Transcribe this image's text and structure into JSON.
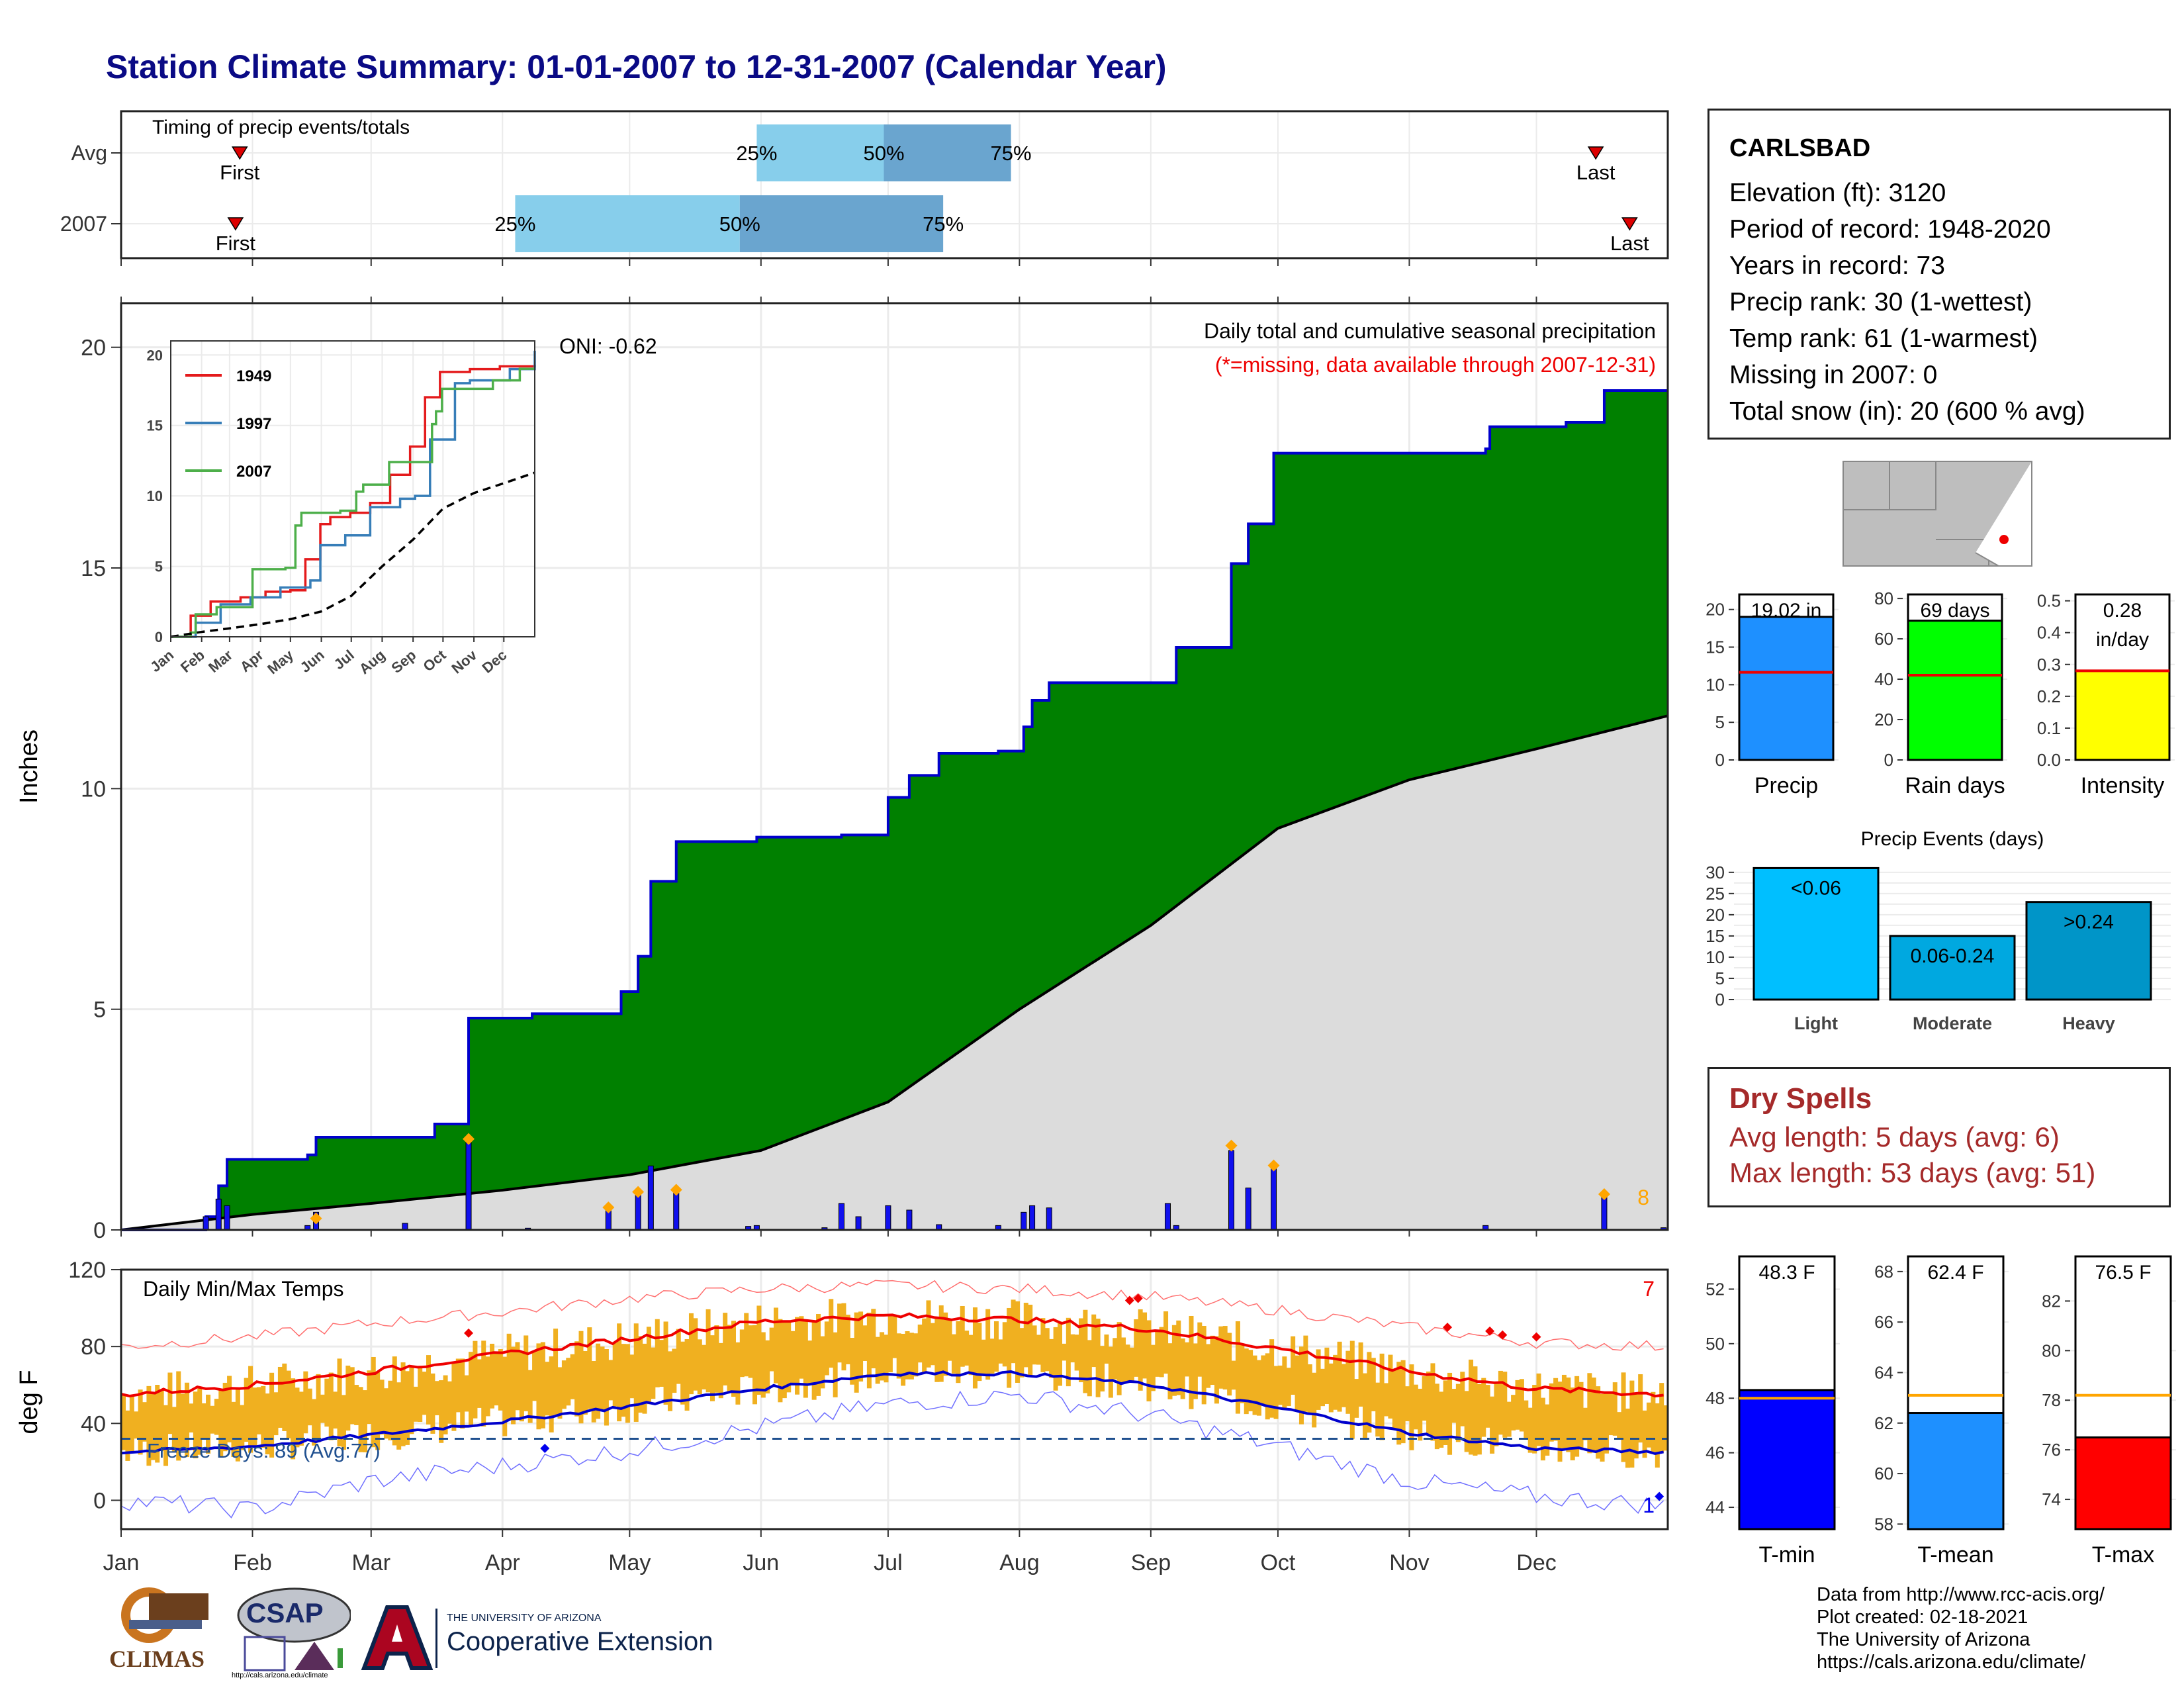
{
  "title": "Station Climate Summary: 01-01-2007 to 12-31-2007 (Calendar Year)",
  "timing": {
    "label": "Timing of precip events/totals",
    "rows": [
      {
        "name": "Avg",
        "first_day": 28,
        "q25_day": 150,
        "q50_day": 180,
        "q75_day": 210,
        "last_day": 348
      },
      {
        "name": "2007",
        "first_day": 27,
        "q25_day": 93,
        "q50_day": 146,
        "q75_day": 194,
        "last_day": 356
      }
    ],
    "first_label": "First",
    "last_label": "Last",
    "q25_label": "25%",
    "q50_label": "50%",
    "q75_label": "75%"
  },
  "main": {
    "ylabel": "Inches",
    "caption1": "Daily total and cumulative seasonal precipitation",
    "caption2": "(*=missing, data available through 2007-12-31)",
    "oni": "ONI: -0.62",
    "corner_count": "8",
    "colors": {
      "cumulative": "#008000",
      "average": "#dcdcdc",
      "daily_bar": "#1010ee",
      "outline": "#0000cc"
    }
  },
  "chart_data": [
    {
      "type": "area",
      "name": "cumulative-precip",
      "x_ticks": [
        "Jan",
        "Feb",
        "Mar",
        "Apr",
        "May",
        "Jun",
        "Jul",
        "Aug",
        "Sep",
        "Oct",
        "Nov",
        "Dec"
      ],
      "yticks": [
        "0",
        "5",
        "10",
        "15",
        "20"
      ],
      "ylim": [
        0,
        21
      ],
      "cumulative_steps": [
        [
          0,
          0
        ],
        [
          20,
          0.3
        ],
        [
          23,
          1.0
        ],
        [
          25,
          1.6
        ],
        [
          44,
          1.7
        ],
        [
          46,
          2.1
        ],
        [
          74,
          2.4
        ],
        [
          80,
          2.4
        ],
        [
          82,
          4.8
        ],
        [
          96,
          4.8
        ],
        [
          97,
          4.9
        ],
        [
          115,
          4.9
        ],
        [
          118,
          5.4
        ],
        [
          122,
          6.2
        ],
        [
          125,
          7.9
        ],
        [
          131,
          8.8
        ],
        [
          148,
          8.8
        ],
        [
          150,
          8.9
        ],
        [
          166,
          8.9
        ],
        [
          170,
          8.95
        ],
        [
          181,
          9.8
        ],
        [
          186,
          10.3
        ],
        [
          193,
          10.8
        ],
        [
          201,
          10.8
        ],
        [
          207,
          10.85
        ],
        [
          213,
          11.4
        ],
        [
          215,
          12.0
        ],
        [
          219,
          12.4
        ],
        [
          247,
          12.4
        ],
        [
          249,
          13.2
        ],
        [
          262,
          15.1
        ],
        [
          264,
          15.1
        ],
        [
          266,
          16.0
        ],
        [
          272,
          17.6
        ],
        [
          317,
          17.6
        ],
        [
          322,
          17.7
        ],
        [
          323,
          18.2
        ],
        [
          341,
          18.3
        ],
        [
          347,
          18.3
        ],
        [
          350,
          19.02
        ],
        [
          365,
          19.02
        ]
      ],
      "avg_points": [
        [
          0,
          0
        ],
        [
          31,
          0.35
        ],
        [
          59,
          0.6
        ],
        [
          90,
          0.9
        ],
        [
          120,
          1.25
        ],
        [
          151,
          1.8
        ],
        [
          181,
          2.9
        ],
        [
          212,
          5.0
        ],
        [
          243,
          6.9
        ],
        [
          273,
          9.1
        ],
        [
          304,
          10.2
        ],
        [
          334,
          10.9
        ],
        [
          365,
          11.65
        ]
      ],
      "daily_bars": [
        [
          20,
          0.3
        ],
        [
          23,
          0.7
        ],
        [
          25,
          0.55
        ],
        [
          44,
          0.1
        ],
        [
          46,
          0.4
        ],
        [
          67,
          0.15
        ],
        [
          82,
          2.0
        ],
        [
          96,
          0.04
        ],
        [
          115,
          0.45
        ],
        [
          122,
          0.8
        ],
        [
          125,
          1.45
        ],
        [
          131,
          0.85
        ],
        [
          148,
          0.08
        ],
        [
          150,
          0.1
        ],
        [
          166,
          0.05
        ],
        [
          170,
          0.6
        ],
        [
          174,
          0.3
        ],
        [
          181,
          0.55
        ],
        [
          186,
          0.45
        ],
        [
          193,
          0.12
        ],
        [
          207,
          0.1
        ],
        [
          213,
          0.4
        ],
        [
          215,
          0.55
        ],
        [
          219,
          0.5
        ],
        [
          247,
          0.6
        ],
        [
          249,
          0.1
        ],
        [
          262,
          1.8
        ],
        [
          266,
          0.95
        ],
        [
          272,
          1.4
        ],
        [
          322,
          0.1
        ],
        [
          350,
          0.75
        ],
        [
          364,
          0.05
        ]
      ],
      "missing_markers": [
        [
          46,
          0.2
        ],
        [
          82,
          2.0
        ],
        [
          115,
          0.45
        ],
        [
          122,
          0.8
        ],
        [
          131,
          0.85
        ],
        [
          262,
          1.85
        ],
        [
          272,
          1.4
        ],
        [
          350,
          0.75
        ]
      ]
    },
    {
      "type": "line",
      "name": "inset-cumulative",
      "x_ticks": [
        "Jan",
        "Feb",
        "Mar",
        "Apr",
        "May",
        "Jun",
        "Jul",
        "Aug",
        "Sep",
        "Oct",
        "Nov",
        "Dec"
      ],
      "yticks": [
        "0",
        "5",
        "10",
        "15",
        "20"
      ],
      "ylim": [
        0,
        21
      ],
      "series": [
        {
          "name": "1949",
          "color": "#e41a1c",
          "points": [
            [
              0,
              0
            ],
            [
              20,
              1.5
            ],
            [
              40,
              2.5
            ],
            [
              70,
              2.8
            ],
            [
              95,
              3.2
            ],
            [
              120,
              3.3
            ],
            [
              135,
              5.5
            ],
            [
              150,
              8.0
            ],
            [
              160,
              8.5
            ],
            [
              180,
              8.8
            ],
            [
              200,
              9.5
            ],
            [
              220,
              11.5
            ],
            [
              240,
              13.5
            ],
            [
              255,
              17.0
            ],
            [
              270,
              18.8
            ],
            [
              300,
              19.0
            ],
            [
              330,
              19.2
            ],
            [
              365,
              19.3
            ]
          ]
        },
        {
          "name": "1997",
          "color": "#377eb8",
          "points": [
            [
              0,
              0
            ],
            [
              25,
              1.0
            ],
            [
              50,
              2.3
            ],
            [
              80,
              2.8
            ],
            [
              110,
              3.5
            ],
            [
              140,
              4.0
            ],
            [
              150,
              6.5
            ],
            [
              175,
              7.2
            ],
            [
              200,
              9.2
            ],
            [
              230,
              9.8
            ],
            [
              245,
              10.0
            ],
            [
              260,
              14.0
            ],
            [
              285,
              18.0
            ],
            [
              300,
              18.2
            ],
            [
              340,
              19.0
            ],
            [
              365,
              20.3
            ]
          ]
        },
        {
          "name": "2007",
          "color": "#4daf4a",
          "points": [
            [
              0,
              0
            ],
            [
              20,
              0.3
            ],
            [
              25,
              1.6
            ],
            [
              46,
              2.1
            ],
            [
              82,
              4.8
            ],
            [
              115,
              4.9
            ],
            [
              125,
              7.9
            ],
            [
              131,
              8.8
            ],
            [
              170,
              8.95
            ],
            [
              186,
              10.3
            ],
            [
              193,
              10.8
            ],
            [
              219,
              12.4
            ],
            [
              247,
              12.4
            ],
            [
              262,
              15.1
            ],
            [
              266,
              16.0
            ],
            [
              272,
              17.6
            ],
            [
              317,
              17.6
            ],
            [
              323,
              18.2
            ],
            [
              350,
              19.02
            ],
            [
              365,
              19.02
            ]
          ]
        },
        {
          "name": "avg",
          "color": "#000000",
          "points": [
            [
              0,
              0
            ],
            [
              31,
              0.35
            ],
            [
              59,
              0.6
            ],
            [
              90,
              0.9
            ],
            [
              120,
              1.25
            ],
            [
              151,
              1.8
            ],
            [
              181,
              2.9
            ],
            [
              212,
              5.0
            ],
            [
              243,
              6.9
            ],
            [
              273,
              9.1
            ],
            [
              304,
              10.2
            ],
            [
              334,
              10.9
            ],
            [
              365,
              11.65
            ]
          ]
        }
      ]
    },
    {
      "type": "line",
      "name": "daily-temps",
      "title": "Daily Min/Max Temps",
      "ylabel": "deg F",
      "yticks": [
        "0",
        "40",
        "80",
        "120"
      ],
      "ylim": [
        -15,
        120
      ],
      "x_ticks": [
        "Jan",
        "Feb",
        "Mar",
        "Apr",
        "May",
        "Jun",
        "Jul",
        "Aug",
        "Sep",
        "Oct",
        "Nov",
        "Dec"
      ],
      "normal_max": [
        [
          0,
          55
        ],
        [
          31,
          60
        ],
        [
          59,
          67
        ],
        [
          90,
          76
        ],
        [
          120,
          84
        ],
        [
          151,
          93
        ],
        [
          181,
          96
        ],
        [
          212,
          94
        ],
        [
          243,
          89
        ],
        [
          273,
          79
        ],
        [
          304,
          67
        ],
        [
          334,
          58
        ],
        [
          365,
          55
        ]
      ],
      "normal_min": [
        [
          0,
          25
        ],
        [
          31,
          28
        ],
        [
          59,
          34
        ],
        [
          90,
          41
        ],
        [
          120,
          49
        ],
        [
          151,
          58
        ],
        [
          181,
          66
        ],
        [
          212,
          66
        ],
        [
          243,
          60
        ],
        [
          273,
          48
        ],
        [
          304,
          35
        ],
        [
          334,
          27
        ],
        [
          365,
          25
        ]
      ],
      "record_max": [
        [
          0,
          80
        ],
        [
          31,
          85
        ],
        [
          59,
          92
        ],
        [
          90,
          98
        ],
        [
          120,
          105
        ],
        [
          151,
          110
        ],
        [
          181,
          112
        ],
        [
          212,
          110
        ],
        [
          243,
          106
        ],
        [
          273,
          99
        ],
        [
          304,
          90
        ],
        [
          334,
          82
        ],
        [
          365,
          80
        ]
      ],
      "record_min": [
        [
          0,
          0
        ],
        [
          31,
          -5
        ],
        [
          59,
          10
        ],
        [
          90,
          18
        ],
        [
          120,
          26
        ],
        [
          151,
          38
        ],
        [
          181,
          50
        ],
        [
          212,
          55
        ],
        [
          243,
          44
        ],
        [
          273,
          28
        ],
        [
          304,
          10
        ],
        [
          334,
          2
        ],
        [
          365,
          -3
        ]
      ],
      "freeze_line": 32,
      "freeze_text": "Freeze Days: 89 (Avg:77)",
      "record_high_count": "7",
      "record_low_count": "1",
      "colors": {
        "range": "#f0b020",
        "max": "#ee0000",
        "min": "#0000cc"
      }
    },
    {
      "type": "bar",
      "name": "precip-total",
      "categories": [
        "Precip"
      ],
      "values": [
        19.02
      ],
      "avg": 11.65,
      "label": "19.02 in",
      "yticks": [
        "0",
        "5",
        "10",
        "15",
        "20"
      ],
      "ylim": [
        0,
        22
      ],
      "color": "#1e90ff"
    },
    {
      "type": "bar",
      "name": "rain-days",
      "categories": [
        "Rain days"
      ],
      "values": [
        69
      ],
      "avg": 42,
      "label": "69 days",
      "yticks": [
        "0",
        "20",
        "40",
        "60",
        "80"
      ],
      "ylim": [
        0,
        82
      ],
      "color": "#00ff00"
    },
    {
      "type": "bar",
      "name": "intensity",
      "categories": [
        "Intensity"
      ],
      "values": [
        0.28
      ],
      "avg": 0.28,
      "label": "0.28",
      "label2": "in/day",
      "yticks": [
        "0.0",
        "0.1",
        "0.2",
        "0.3",
        "0.4",
        "0.5"
      ],
      "ylim": [
        0,
        0.52
      ],
      "color": "#ffff00"
    },
    {
      "type": "bar",
      "name": "precip-events",
      "title": "Precip Events (days)",
      "categories": [
        "Light",
        "Moderate",
        "Heavy"
      ],
      "values": [
        31,
        15,
        23
      ],
      "labels": [
        "<0.06",
        "0.06-0.24",
        ">0.24"
      ],
      "yticks": [
        "0",
        "5",
        "10",
        "15",
        "20",
        "25",
        "30"
      ],
      "ylim": [
        0,
        32
      ],
      "colors": [
        "#00bfff",
        "#00a8e0",
        "#0095c8"
      ]
    },
    {
      "type": "bar",
      "name": "t-min",
      "categories": [
        "T-min"
      ],
      "values": [
        48.3
      ],
      "avg": 48.0,
      "label": "48.3 F",
      "yticks": [
        "44",
        "46",
        "48",
        "50",
        "52"
      ],
      "ylim": [
        43.2,
        53.2
      ],
      "color": "#0000ff"
    },
    {
      "type": "bar",
      "name": "t-mean",
      "categories": [
        "T-mean"
      ],
      "values": [
        62.4
      ],
      "avg": 63.1,
      "label": "62.4 F",
      "yticks": [
        "58",
        "60",
        "62",
        "64",
        "66",
        "68"
      ],
      "ylim": [
        57.8,
        68.6
      ],
      "color": "#1e90ff"
    },
    {
      "type": "bar",
      "name": "t-max",
      "categories": [
        "T-max"
      ],
      "values": [
        76.5
      ],
      "avg": 78.2,
      "label": "76.5 F",
      "yticks": [
        "74",
        "76",
        "78",
        "80",
        "82"
      ],
      "ylim": [
        72.8,
        83.8
      ],
      "color": "#ff0000"
    }
  ],
  "station": {
    "name": "CARLSBAD",
    "lines": [
      "Elevation (ft): 3120",
      "Period of record: 1948-2020",
      "Years in record: 73",
      "Precip rank: 30 (1-wettest)",
      "Temp rank: 61 (1-warmest)",
      "Missing in 2007: 0",
      "Total snow (in): 20 (600 % avg)"
    ]
  },
  "dry_spells": {
    "title": "Dry Spells",
    "lines": [
      "Avg length: 5 days (avg: 6)",
      "Max length: 53 days (avg: 51)"
    ]
  },
  "credits": [
    "Data from http://www.rcc-acis.org/",
    "Plot created: 02-18-2021",
    "The University of Arizona",
    "https://cals.arizona.edu/climate/"
  ],
  "logos": {
    "climas": "CLIMAS",
    "csap": "CSAP",
    "csap_url": "http://cals.arizona.edu/climate",
    "ua_line1": "THE UNIVERSITY OF ARIZONA",
    "ua_line2": "Cooperative Extension"
  }
}
